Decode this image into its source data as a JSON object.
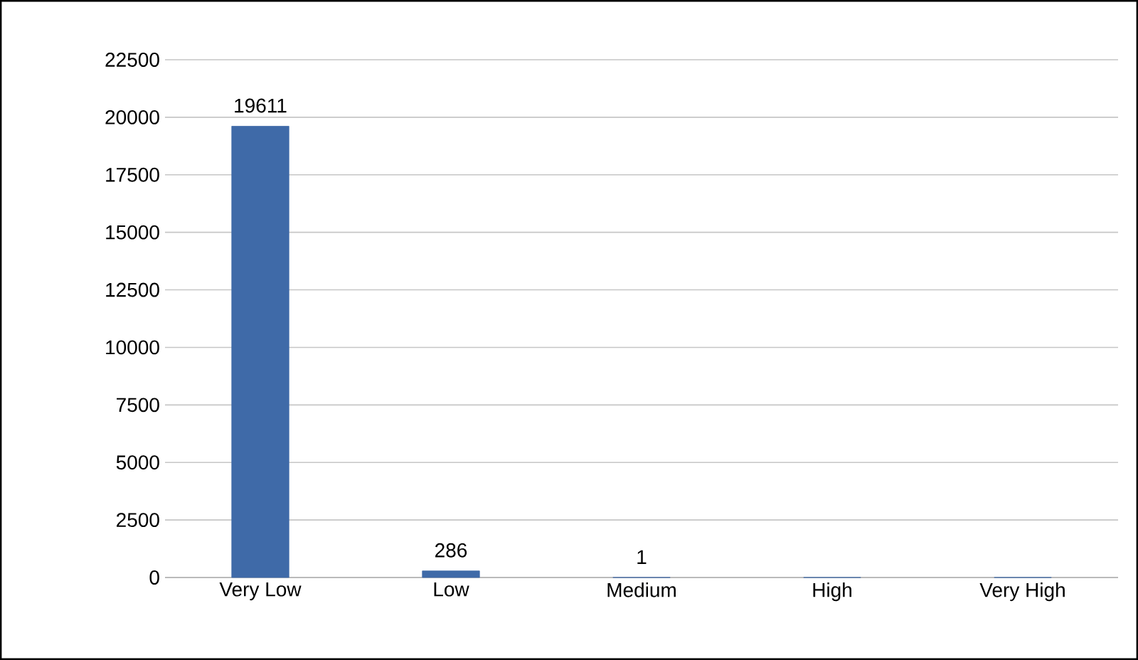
{
  "chart_data": {
    "type": "bar",
    "categories": [
      "Very Low",
      "Low",
      "Medium",
      "High",
      "Very High"
    ],
    "values": [
      19611,
      286,
      1,
      0,
      0
    ],
    "value_labels": [
      "19611",
      "286",
      "1",
      null,
      null
    ],
    "color": "#3f6aa8",
    "ylim": [
      0,
      22500
    ],
    "yticks": [
      0,
      2500,
      5000,
      7500,
      10000,
      12500,
      15000,
      17500,
      20000,
      22500
    ],
    "grid": "y"
  }
}
